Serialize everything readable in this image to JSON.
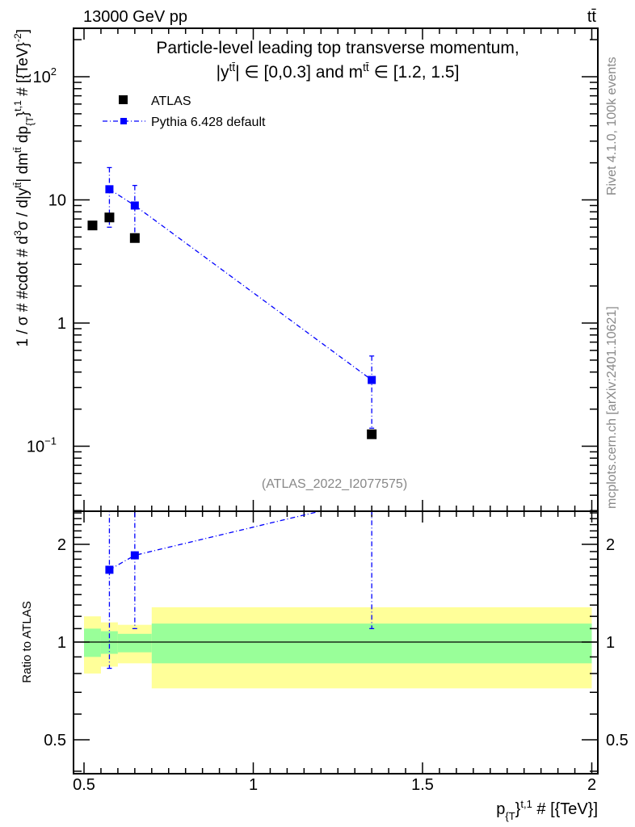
{
  "header": {
    "left": "13000 GeV pp",
    "right": "tt̄"
  },
  "title_parts": [
    {
      "t": "Particle-level leading top transverse momentum, |y"
    },
    {
      "t": "tt̄",
      "s": "sup"
    },
    {
      "t": "| ∈ [0,0.3] and m"
    },
    {
      "t": "tt̄",
      "s": "sup"
    },
    {
      "t": " ∈ [1.2, 1.5]"
    }
  ],
  "side_labels": {
    "rivet": "Rivet 4.1.0,  100k events",
    "mcplots": "mcplots.cern.ch [arXiv:2401.10621]"
  },
  "watermark": "(ATLAS_2022_I2077575)",
  "colors": {
    "atlas": "#000000",
    "pythia": "#0000ff",
    "band_inner": "#99ff99",
    "band_outer": "#ffff99"
  },
  "chart_data": [
    {
      "type": "scatter",
      "panel": "main",
      "yscale": "log",
      "xlim": [
        0.47,
        2.02
      ],
      "ylim": [
        0.03,
        250
      ],
      "ylabel_parts": [
        {
          "t": "1 / σ # #cdot # d"
        },
        {
          "t": "3",
          "s": "sup"
        },
        {
          "t": "σ / d|y"
        },
        {
          "t": "tt̄",
          "s": "sup"
        },
        {
          "t": "| dm"
        },
        {
          "t": "tt̄",
          "s": "sup"
        },
        {
          "t": " dp"
        },
        {
          "t": "{T",
          "s": "sub"
        },
        {
          "t": "}"
        },
        {
          "t": "t,1",
          "s": "sup"
        },
        {
          "t": " # [{TeV}"
        },
        {
          "t": "-2",
          "s": "sup"
        },
        {
          "t": "]"
        }
      ],
      "yticks": [
        {
          "v": 100,
          "b": "10",
          "e": "2"
        },
        {
          "v": 10,
          "b": "10",
          "e": ""
        },
        {
          "v": 1,
          "b": "1",
          "e": ""
        },
        {
          "v": 0.1,
          "b": "10",
          "e": "−1"
        }
      ],
      "legend": {
        "position": "top-left",
        "entries": [
          "ATLAS",
          "Pythia 6.428 default"
        ]
      },
      "series": [
        {
          "name": "ATLAS",
          "x": [
            0.525,
            0.575,
            0.65,
            1.35
          ],
          "xerr": [
            [
              0.5,
              0.55
            ],
            [
              0.55,
              0.6
            ],
            [
              0.6,
              0.7
            ],
            [
              0.7,
              2.0
            ]
          ],
          "y": [
            6.2,
            7.2,
            4.9,
            0.125
          ]
        },
        {
          "name": "Pythia 6.428 default",
          "x": [
            0.575,
            0.65,
            1.35
          ],
          "y": [
            12.2,
            9.0,
            0.345
          ],
          "ylo": [
            6.0,
            5.3,
            0.14
          ],
          "yhi": [
            18.3,
            13.1,
            0.54
          ]
        }
      ]
    },
    {
      "type": "scatter",
      "panel": "ratio",
      "yscale": "log",
      "ylabel": "Ratio to ATLAS",
      "ylim": [
        0.39,
        2.53
      ],
      "yticks": [
        "2",
        "1",
        "0.5"
      ],
      "ytick_values": [
        2,
        1,
        0.5
      ],
      "xlabel_parts": [
        {
          "t": "p"
        },
        {
          "t": "{T",
          "s": "sub"
        },
        {
          "t": "}"
        },
        {
          "t": "t,1",
          "s": "sup"
        },
        {
          "t": " # [{TeV}]"
        }
      ],
      "xticks": [
        "0.5",
        "1",
        "1.5",
        "2"
      ],
      "xtick_values": [
        0.5,
        1,
        1.5,
        2
      ],
      "bands": [
        {
          "x": [
            0.5,
            0.55
          ],
          "inner": [
            0.9,
            1.1
          ],
          "outer": [
            0.8,
            1.2
          ]
        },
        {
          "x": [
            0.55,
            0.6
          ],
          "inner": [
            0.92,
            1.08
          ],
          "outer": [
            0.84,
            1.15
          ]
        },
        {
          "x": [
            0.6,
            0.7
          ],
          "inner": [
            0.93,
            1.06
          ],
          "outer": [
            0.86,
            1.13
          ]
        },
        {
          "x": [
            0.7,
            2.0
          ],
          "inner": [
            0.86,
            1.14
          ],
          "outer": [
            0.72,
            1.28
          ]
        }
      ],
      "series": [
        {
          "name": "Pythia 6.428 default",
          "x": [
            0.575,
            0.65,
            1.35
          ],
          "y": [
            1.67,
            1.85,
            2.76
          ],
          "ylo": [
            0.83,
            1.1,
            1.1
          ],
          "yhi": [
            2.6,
            2.7,
            4.3
          ]
        }
      ]
    }
  ]
}
